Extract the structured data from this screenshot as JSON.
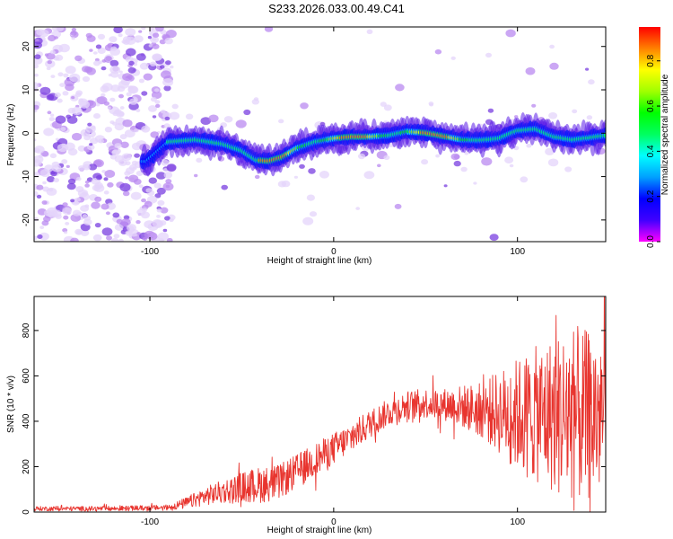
{
  "title": "S233.2026.033.00.49.C41",
  "chart_data": [
    {
      "type": "heatmap",
      "xlabel": "Height of straight line (km)",
      "ylabel": "Frequency (Hz)",
      "xlim": [
        -163,
        148
      ],
      "ylim": [
        -25,
        24.5
      ],
      "xticks": [
        -100,
        0,
        100
      ],
      "yticks": [
        -20,
        -10,
        0,
        10,
        20
      ],
      "ridge": {
        "x": [
          -102,
          -90,
          -75,
          -60,
          -50,
          -42,
          -35,
          -28,
          -20,
          -10,
          0,
          10,
          20,
          30,
          40,
          50,
          60,
          70,
          80,
          90,
          100,
          110,
          120,
          130,
          140,
          148
        ],
        "y": [
          -6.5,
          -2.0,
          -1.5,
          -2.5,
          -4.0,
          -6.2,
          -6.4,
          -5.5,
          -3.5,
          -2.0,
          -1.2,
          -0.8,
          -0.8,
          -0.5,
          0.4,
          0.1,
          -0.7,
          -1.5,
          -1.6,
          -1.2,
          0.6,
          1.0,
          -0.8,
          -1.5,
          -1.0,
          -0.5
        ]
      },
      "colorbar": {
        "label": "Normalized spectral amplitude",
        "range": [
          0.0,
          0.95
        ],
        "ticks": [
          "0.0",
          "0.2",
          "0.4",
          "0.6",
          "0.8"
        ],
        "tick_values": [
          0.0,
          0.2,
          0.4,
          0.6,
          0.8
        ],
        "colors": [
          "#ff00ff",
          "#4000ff",
          "#0000ff",
          "#00a0ff",
          "#00ffff",
          "#00ff60",
          "#00ff00",
          "#a0ff00",
          "#ffff00",
          "#ff8000",
          "#ff0000"
        ]
      }
    },
    {
      "type": "line",
      "xlabel": "Height of straight line (km)",
      "ylabel": "SNR (10 * v/v)",
      "xlim": [
        -163,
        148
      ],
      "ylim": [
        0,
        950
      ],
      "xticks": [
        -100,
        0,
        100
      ],
      "yticks": [
        0,
        200,
        400,
        600,
        800
      ],
      "color": "#e8352f",
      "envelope": {
        "x": [
          -163,
          -120,
          -90,
          -80,
          -70,
          -60,
          -50,
          -40,
          -30,
          -20,
          -10,
          0,
          10,
          20,
          30,
          40,
          50,
          60,
          70,
          80,
          90,
          100,
          110,
          120,
          130,
          140,
          148
        ],
        "y": [
          15,
          15,
          20,
          40,
          70,
          90,
          110,
          120,
          130,
          180,
          230,
          280,
          330,
          390,
          440,
          470,
          480,
          475,
          465,
          450,
          440,
          430,
          430,
          430,
          430,
          420,
          430
        ]
      },
      "noise_amplitude": {
        "x": [
          -163,
          -90,
          -70,
          -40,
          0,
          30,
          60,
          80,
          100,
          130,
          148
        ],
        "y": [
          10,
          12,
          40,
          80,
          70,
          60,
          70,
          120,
          250,
          400,
          350
        ]
      }
    }
  ]
}
